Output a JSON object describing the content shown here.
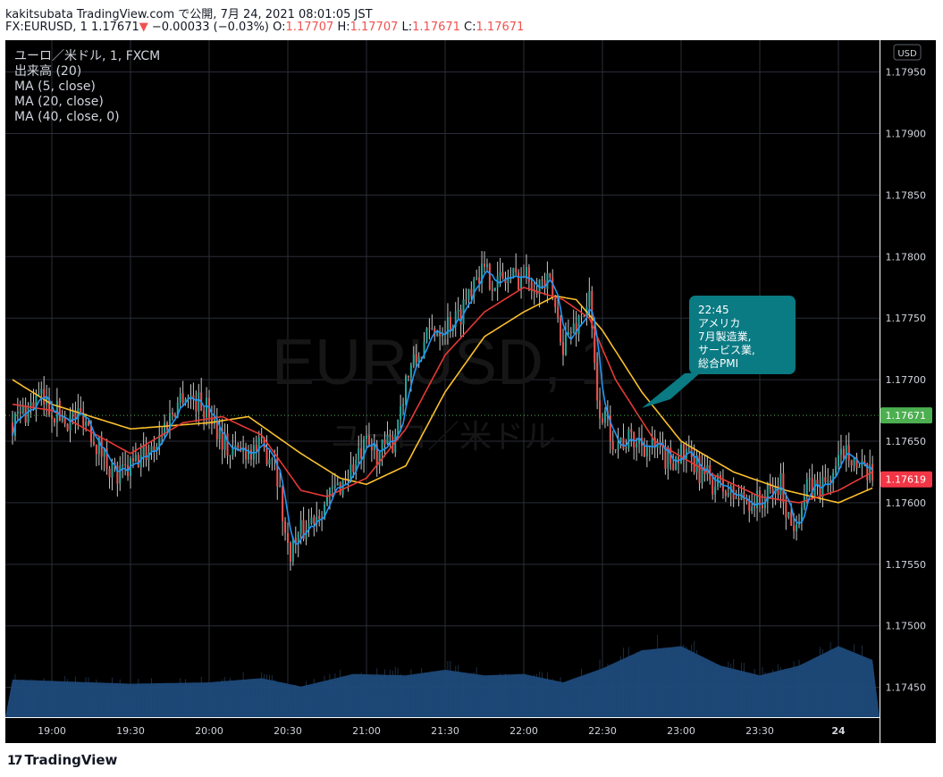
{
  "header": {
    "line1": "kakitsubata TradingView.com で公開, 7月 24, 2021 08:01:05 JST",
    "symbol_prefix": "FX:EURUSD, 1",
    "last_price": "1.17671",
    "arrow": "▼",
    "change": "−0.00033 (−0.03%)",
    "o_label": "O:",
    "o_value": "1.17707",
    "h_label": "H:",
    "h_value": "1.17707",
    "l_label": "L:",
    "l_value": "1.17671",
    "c_label": "C:",
    "c_value": "1.17671"
  },
  "legend": [
    "ユーロ／米ドル, 1, FXCM",
    "出来高 (20)",
    "MA (5, close)",
    "MA (20, close)",
    "MA (40, close, 0)"
  ],
  "watermark": {
    "main": "EURUSD, 1",
    "sub": "ユーロ／米ドル"
  },
  "annotation": [
    "22:45",
    "アメリカ",
    "7月製造業,",
    "サービス業,",
    "総合PMI"
  ],
  "currency": "USD",
  "price_badges": [
    {
      "value": "1.17671",
      "color": "#4caf50"
    },
    {
      "value": "1.17619",
      "color": "#f23645"
    }
  ],
  "footer": {
    "logo": "TradingView",
    "mark": "17"
  },
  "colors": {
    "background": "#000000",
    "grid": "#2a2e39",
    "up": "#26a69a",
    "down": "#ef5350",
    "ma5": "#2196f3",
    "ma20": "#e53935",
    "ma40": "#fbc02d",
    "volume": "#1e4a7a",
    "annotation": "#0a7a83"
  },
  "chart_data": {
    "type": "candlestick",
    "symbol": "EURUSD",
    "ylim": [
      1.1742,
      1.1797
    ],
    "y_ticks": [
      1.1795,
      1.179,
      1.1785,
      1.178,
      1.1775,
      1.177,
      1.1765,
      1.176,
      1.1755,
      1.175,
      1.1745
    ],
    "y_tick_labels": [
      "1.17950",
      "1.17900",
      "1.17850",
      "1.17800",
      "1.17750",
      "1.17700",
      "1.17650",
      "1.17600",
      "1.17550",
      "1.17500",
      "1.17450"
    ],
    "x_tick_labels": [
      "19:00",
      "19:30",
      "20:00",
      "20:30",
      "21:00",
      "21:30",
      "22:00",
      "22:30",
      "23:00",
      "23:30",
      "24"
    ],
    "time_start": "18:45",
    "time_end": "23:58",
    "close_path": [
      [
        "18:45",
        1.17665
      ],
      [
        "18:55",
        1.17685
      ],
      [
        "19:05",
        1.17668
      ],
      [
        "19:12",
        1.17672
      ],
      [
        "19:18",
        1.17645
      ],
      [
        "19:25",
        1.1762
      ],
      [
        "19:30",
        1.17628
      ],
      [
        "19:40",
        1.1765
      ],
      [
        "19:50",
        1.1769
      ],
      [
        "20:00",
        1.17675
      ],
      [
        "20:08",
        1.1764
      ],
      [
        "20:15",
        1.17645
      ],
      [
        "20:25",
        1.1764
      ],
      [
        "20:30",
        1.1756
      ],
      [
        "20:40",
        1.1759
      ],
      [
        "20:50",
        1.17615
      ],
      [
        "21:00",
        1.17645
      ],
      [
        "21:05",
        1.1764
      ],
      [
        "21:10",
        1.1765
      ],
      [
        "21:15",
        1.177
      ],
      [
        "21:25",
        1.1774
      ],
      [
        "21:35",
        1.1775
      ],
      [
        "21:42",
        1.1779
      ],
      [
        "21:50",
        1.1778
      ],
      [
        "22:00",
        1.17785
      ],
      [
        "22:05",
        1.1778
      ],
      [
        "22:10",
        1.17775
      ],
      [
        "22:15",
        1.1773
      ],
      [
        "22:20",
        1.17745
      ],
      [
        "22:25",
        1.17765
      ],
      [
        "22:28",
        1.1768
      ],
      [
        "22:35",
        1.1765
      ],
      [
        "22:45",
        1.1765
      ],
      [
        "22:55",
        1.17635
      ],
      [
        "23:00",
        1.1764
      ],
      [
        "23:10",
        1.1762
      ],
      [
        "23:20",
        1.17605
      ],
      [
        "23:30",
        1.176
      ],
      [
        "23:38",
        1.17615
      ],
      [
        "23:42",
        1.1758
      ],
      [
        "23:48",
        1.1761
      ],
      [
        "23:55",
        1.17615
      ],
      [
        "24:00",
        1.1763
      ],
      [
        "24:03",
        1.1765
      ],
      [
        "24:08",
        1.17625
      ],
      [
        "24:13",
        1.17619
      ]
    ],
    "ma40_path": [
      [
        "18:45",
        1.177
      ],
      [
        "19:00",
        1.1768
      ],
      [
        "19:30",
        1.1766
      ],
      [
        "20:00",
        1.17665
      ],
      [
        "20:15",
        1.1767
      ],
      [
        "20:35",
        1.1764
      ],
      [
        "20:50",
        1.1762
      ],
      [
        "21:00",
        1.17615
      ],
      [
        "21:15",
        1.1763
      ],
      [
        "21:30",
        1.1769
      ],
      [
        "21:45",
        1.17735
      ],
      [
        "22:00",
        1.17755
      ],
      [
        "22:12",
        1.17768
      ],
      [
        "22:20",
        1.17765
      ],
      [
        "22:30",
        1.1774
      ],
      [
        "22:45",
        1.1769
      ],
      [
        "23:00",
        1.1765
      ],
      [
        "23:20",
        1.17625
      ],
      [
        "23:40",
        1.1761
      ],
      [
        "24:00",
        1.176
      ],
      [
        "24:13",
        1.17612
      ]
    ],
    "ma20_path": [
      [
        "18:45",
        1.1768
      ],
      [
        "19:00",
        1.17675
      ],
      [
        "19:30",
        1.1764
      ],
      [
        "19:50",
        1.17665
      ],
      [
        "20:05",
        1.1767
      ],
      [
        "20:20",
        1.17655
      ],
      [
        "20:35",
        1.1761
      ],
      [
        "20:45",
        1.17605
      ],
      [
        "21:00",
        1.1762
      ],
      [
        "21:15",
        1.1766
      ],
      [
        "21:30",
        1.1772
      ],
      [
        "21:45",
        1.17755
      ],
      [
        "22:00",
        1.17775
      ],
      [
        "22:15",
        1.17765
      ],
      [
        "22:25",
        1.1775
      ],
      [
        "22:35",
        1.177
      ],
      [
        "22:50",
        1.1765
      ],
      [
        "23:10",
        1.17625
      ],
      [
        "23:30",
        1.17605
      ],
      [
        "23:45",
        1.176
      ],
      [
        "24:00",
        1.1761
      ],
      [
        "24:13",
        1.17625
      ]
    ],
    "volume_ma_level": [
      [
        "18:45",
        0.27
      ],
      [
        "19:30",
        0.24
      ],
      [
        "20:00",
        0.25
      ],
      [
        "20:20",
        0.28
      ],
      [
        "20:35",
        0.22
      ],
      [
        "20:55",
        0.31
      ],
      [
        "21:15",
        0.3
      ],
      [
        "21:30",
        0.34
      ],
      [
        "21:45",
        0.3
      ],
      [
        "22:00",
        0.31
      ],
      [
        "22:15",
        0.25
      ],
      [
        "22:30",
        0.35
      ],
      [
        "22:45",
        0.48
      ],
      [
        "23:00",
        0.51
      ],
      [
        "23:15",
        0.37
      ],
      [
        "23:30",
        0.3
      ],
      [
        "23:45",
        0.37
      ],
      [
        "24:00",
        0.51
      ],
      [
        "24:13",
        0.41
      ]
    ]
  }
}
